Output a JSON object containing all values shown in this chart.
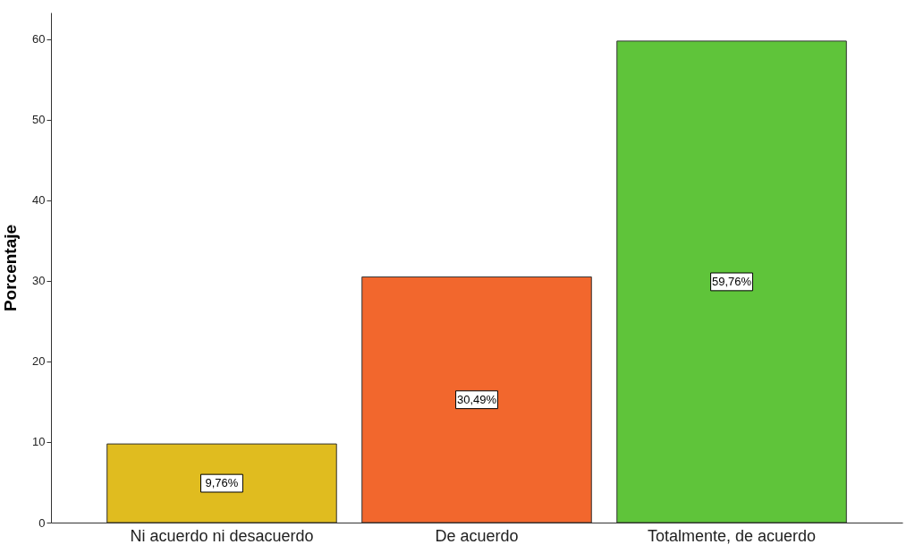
{
  "chart_data": {
    "type": "bar",
    "ylabel": "Porcentaje",
    "categories": [
      "Ni acuerdo ni desacuerdo",
      "De acuerdo",
      "Totalmente, de acuerdo"
    ],
    "values": [
      9.76,
      30.49,
      59.76
    ],
    "value_labels": [
      "9,76%",
      "30,49%",
      "59,76%"
    ],
    "colors": [
      "#e0bc1f",
      "#f2672d",
      "#5fc43a"
    ],
    "ylim": [
      0,
      63.3
    ],
    "yticks": [
      0,
      10,
      20,
      30,
      40,
      50,
      60
    ],
    "grid": false
  }
}
